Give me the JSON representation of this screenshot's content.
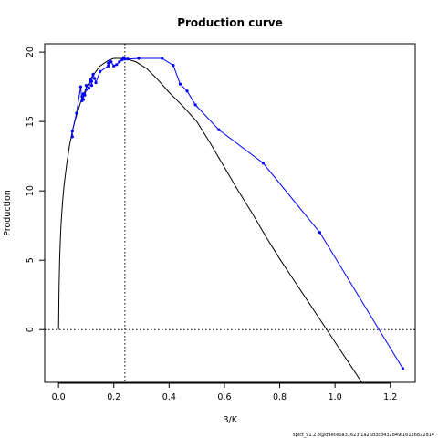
{
  "chart_data": {
    "type": "line",
    "title": "Production curve",
    "xlabel": "B/K",
    "ylabel": "Production",
    "xlim": [
      -0.05,
      1.29
    ],
    "ylim": [
      -3.8,
      20.6
    ],
    "xticks": [
      0.0,
      0.2,
      0.4,
      0.6,
      0.8,
      1.0,
      1.2
    ],
    "xtick_labels": [
      "0.0",
      "0.2",
      "0.4",
      "0.6",
      "0.8",
      "1.0",
      "1.2"
    ],
    "yticks": [
      0,
      5,
      10,
      15,
      20
    ],
    "ytick_labels": [
      "0",
      "5",
      "10",
      "15",
      "20"
    ],
    "grid": false,
    "bmsy_line": {
      "x": 0.24
    },
    "zero_line": {
      "y": 0
    },
    "series": [
      {
        "kind": "model_curve",
        "color": "#000000",
        "x": [
          0.0,
          0.0005,
          0.001,
          0.002,
          0.004,
          0.007,
          0.01,
          0.015,
          0.02,
          0.03,
          0.04,
          0.05,
          0.06,
          0.08,
          0.1,
          0.12,
          0.15,
          0.18,
          0.2,
          0.24,
          0.28,
          0.32,
          0.36,
          0.4,
          0.45,
          0.5,
          0.55,
          0.6,
          0.65,
          0.7,
          0.75,
          0.8,
          0.85,
          0.9,
          0.95,
          1.0,
          1.05,
          1.1
        ],
        "values": [
          0.0,
          0.6,
          1.6,
          3.1,
          5.0,
          6.7,
          7.9,
          9.3,
          10.4,
          12.0,
          13.3,
          14.3,
          15.1,
          16.4,
          17.4,
          18.2,
          19.0,
          19.4,
          19.55,
          19.55,
          19.3,
          18.8,
          18.0,
          17.1,
          16.1,
          15.0,
          13.4,
          11.7,
          10.0,
          8.4,
          6.7,
          5.1,
          3.6,
          2.1,
          0.6,
          -0.9,
          -2.4,
          -3.9
        ]
      },
      {
        "kind": "observed",
        "color": "#0000ff",
        "x": [
          0.05,
          0.05,
          0.065,
          0.08,
          0.085,
          0.085,
          0.09,
          0.09,
          0.095,
          0.1,
          0.1,
          0.11,
          0.115,
          0.12,
          0.12,
          0.125,
          0.13,
          0.135,
          0.15,
          0.18,
          0.18,
          0.185,
          0.19,
          0.2,
          0.21,
          0.22,
          0.23,
          0.235,
          0.24,
          0.25,
          0.29,
          0.375,
          0.415,
          0.44,
          0.465,
          0.495,
          0.58,
          0.74,
          0.945,
          1.245
        ],
        "values": [
          13.9,
          14.3,
          15.6,
          17.5,
          16.5,
          16.8,
          16.6,
          17.0,
          16.9,
          17.3,
          17.6,
          17.4,
          18.0,
          17.6,
          17.9,
          18.4,
          18.1,
          17.8,
          18.6,
          19.0,
          19.2,
          19.35,
          19.3,
          19.0,
          19.1,
          19.3,
          19.45,
          19.6,
          19.5,
          19.5,
          19.55,
          19.55,
          19.05,
          17.7,
          17.2,
          16.2,
          14.4,
          12.0,
          7.0,
          -2.8
        ]
      }
    ],
    "footnote": "spict_v1.2.8@d9ece0a31623f1a26d3cb432849f16136822d14"
  }
}
